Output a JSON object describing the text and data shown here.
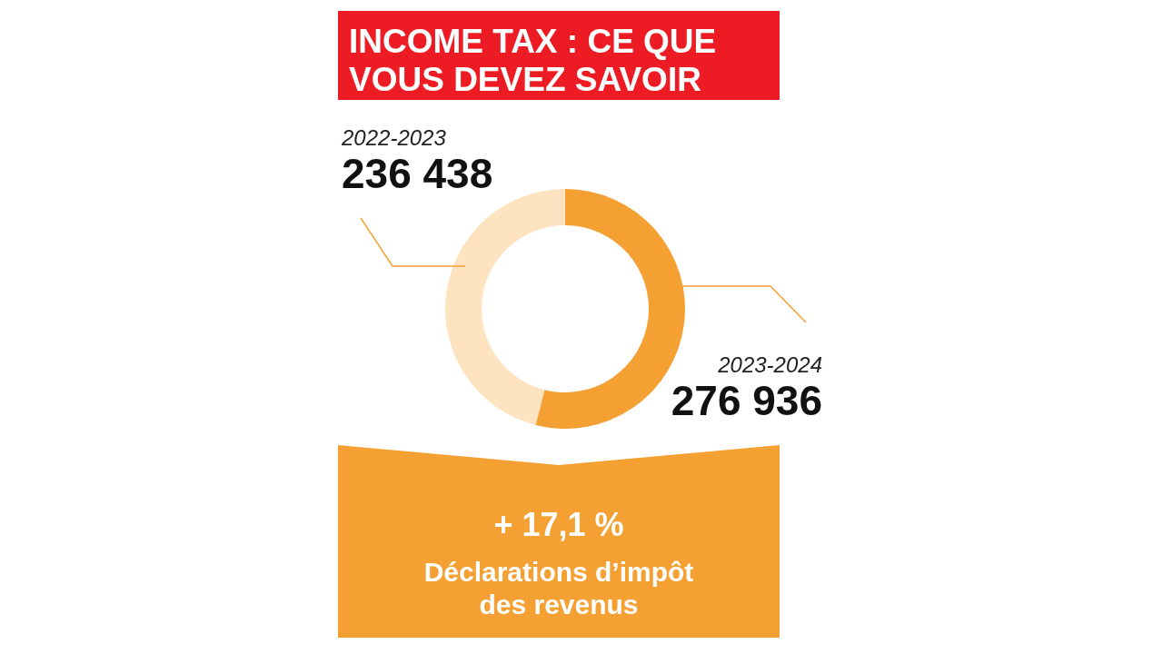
{
  "chart_data": {
    "type": "donut",
    "title": "INCOME TAX : CE QUE VOUS DEVEZ SAVOIR",
    "categories": [
      "2022-2023",
      "2023-2024"
    ],
    "values": [
      236438,
      276936
    ],
    "colors": [
      "#fde3bf",
      "#f5a032"
    ],
    "data_labels": true,
    "annotations": [
      "+ 17,1 %",
      "Déclarations d’impôt des revenus"
    ]
  }
}
